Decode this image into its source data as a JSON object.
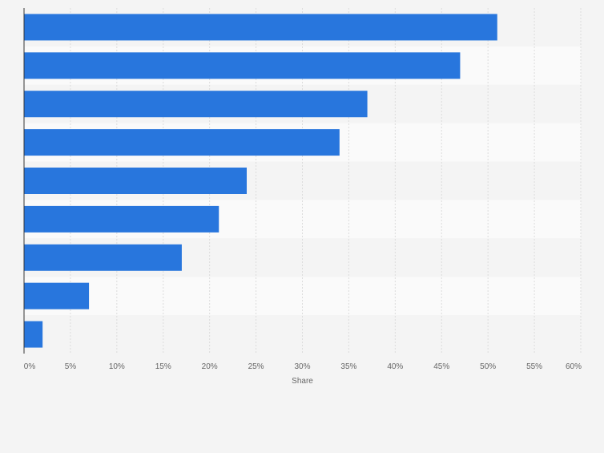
{
  "chart_data": {
    "type": "bar",
    "orientation": "horizontal",
    "categories": [
      "",
      "",
      "",
      "",
      "",
      "",
      "",
      "",
      ""
    ],
    "values": [
      51,
      47,
      37,
      34,
      24,
      21,
      17,
      7,
      2
    ],
    "title": "",
    "xlabel": "Share",
    "ylabel": "",
    "xlim": [
      0,
      60
    ],
    "x_ticks": [
      "0%",
      "5%",
      "10%",
      "15%",
      "20%",
      "25%",
      "30%",
      "35%",
      "40%",
      "45%",
      "50%",
      "55%",
      "60%"
    ],
    "grid": true,
    "legend": "none",
    "bar_color": "#2876dd"
  },
  "colors": {
    "bar": "#2876dd",
    "band_light": "#fafafa",
    "band_dark": "#f4f4f4",
    "grid": "#dcdcdc",
    "axis": "#333333",
    "text": "#666666"
  }
}
